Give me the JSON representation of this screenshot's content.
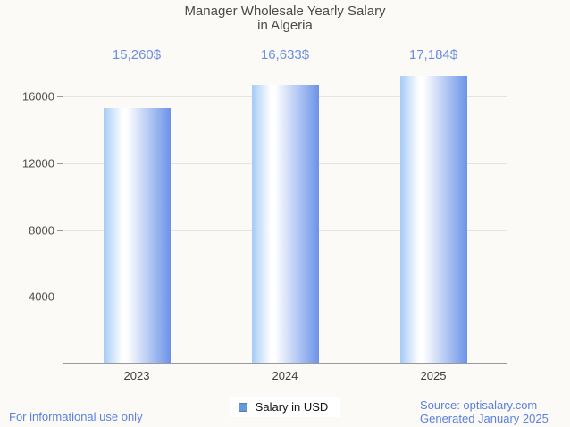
{
  "title": {
    "line1": "Manager Wholesale Yearly Salary",
    "line2": "in Algeria"
  },
  "legend": {
    "label": "Salary in USD",
    "swatch_color": "#5c9ce5"
  },
  "footer": {
    "left": "For informational use only",
    "source": "Source: optisalary.com",
    "generated": "Generated January 2025"
  },
  "colors": {
    "background": "#fbfaf7",
    "axis": "#999999",
    "gridline": "#e5e4e1",
    "title_text": "#4a4a4a",
    "value_label_text": "#6a8de4",
    "tick_text": "#4f4f4f",
    "xlabel_text": "#3d3d3d",
    "footer_text": "#5b80e1",
    "bar_edge_blue": "#6b93e9",
    "bar_light_blue": "#a5cbf5"
  },
  "chart_data": {
    "type": "bar",
    "title": "Manager Wholesale Yearly Salary in Algeria",
    "categories": [
      "2023",
      "2024",
      "2025"
    ],
    "values": [
      15260,
      16633,
      17184
    ],
    "value_labels": [
      "15,260$",
      "16,633$",
      "17,184$"
    ],
    "series_name": "Salary in USD",
    "xlabel": "",
    "ylabel": "",
    "yticks": [
      4000,
      8000,
      12000,
      16000
    ],
    "ylim": [
      0,
      17616
    ],
    "grid": true,
    "legend_position": "bottom",
    "bar_gradient": [
      "#a5cbf5",
      "#ffffff",
      "#6b93e9"
    ]
  }
}
